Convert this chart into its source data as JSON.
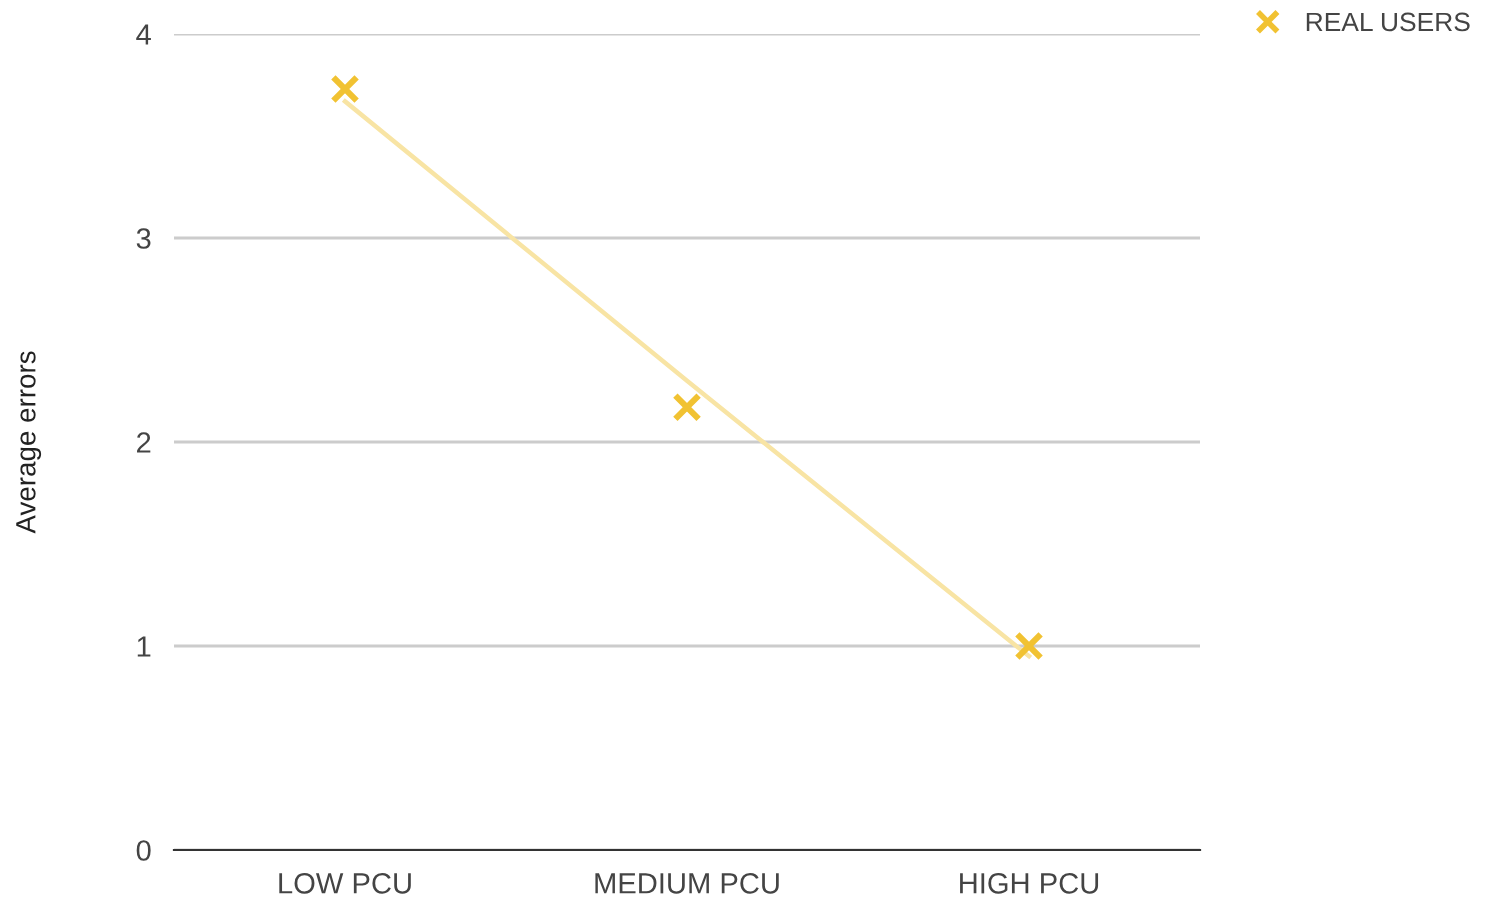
{
  "chart_data": {
    "type": "scatter",
    "ylabel": "Average errors",
    "categories": [
      "LOW PCU",
      "MEDIUM PCU",
      "HIGH PCU"
    ],
    "series": [
      {
        "name": "REAL USERS",
        "color": "#f1c232",
        "values": [
          3.73,
          2.17,
          1.0
        ],
        "marker": "cross"
      },
      {
        "type": "line",
        "color": "#f8e4a4",
        "values": [
          3.67,
          2.3,
          0.95
        ],
        "marker": "none"
      }
    ],
    "ylim": [
      0,
      4
    ],
    "yticks": [
      0,
      1,
      2,
      3,
      4
    ],
    "grid": "y",
    "legend": "top right"
  }
}
